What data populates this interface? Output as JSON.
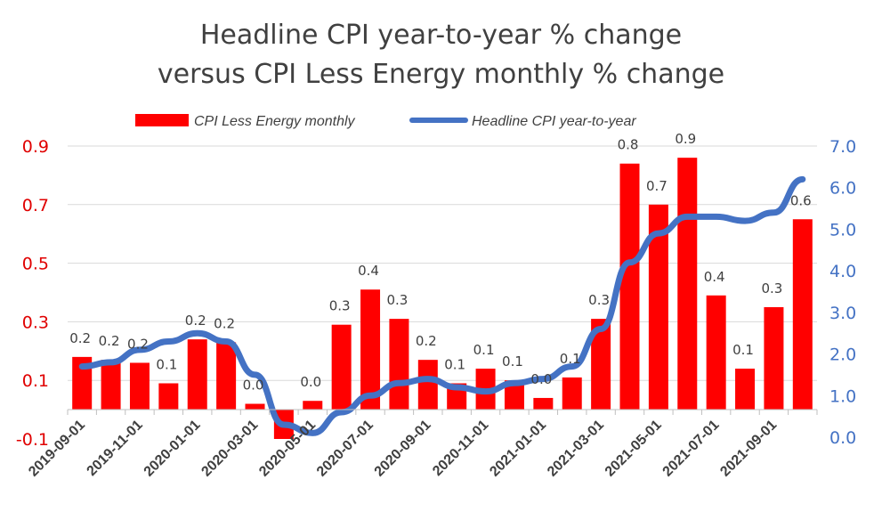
{
  "title": {
    "line1": "Headline CPI year-to-year % change",
    "line2": "versus CPI Less Energy monthly % change"
  },
  "legend": {
    "bar_label": "CPI Less Energy monthly",
    "line_label": "Headline CPI year-to-year"
  },
  "colors": {
    "bar": "#ff0000",
    "line": "#4472c4",
    "left_axis": "#e00000",
    "right_axis": "#4472c4",
    "text": "#404040"
  },
  "chart_data": {
    "type": "bar",
    "categories": [
      "2019-09-01",
      "2019-10-01",
      "2019-11-01",
      "2019-12-01",
      "2020-01-01",
      "2020-02-01",
      "2020-03-01",
      "2020-04-01",
      "2020-05-01",
      "2020-06-01",
      "2020-07-01",
      "2020-08-01",
      "2020-09-01",
      "2020-10-01",
      "2020-11-01",
      "2020-12-01",
      "2021-01-01",
      "2021-02-01",
      "2021-03-01",
      "2021-04-01",
      "2021-05-01",
      "2021-06-01",
      "2021-07-01",
      "2021-08-01",
      "2021-09-01",
      "2021-10-01"
    ],
    "x_tick_labels": [
      "2019-09-01",
      "2019-11-01",
      "2020-01-01",
      "2020-03-01",
      "2020-05-01",
      "2020-07-01",
      "2020-09-01",
      "2020-11-01",
      "2021-01-01",
      "2021-03-01",
      "2021-05-01",
      "2021-07-01",
      "2021-09-01"
    ],
    "series": [
      {
        "name": "CPI Less Energy monthly",
        "type": "bar",
        "axis": "left",
        "values": [
          0.18,
          0.17,
          0.16,
          0.09,
          0.24,
          0.23,
          0.02,
          -0.1,
          0.03,
          0.29,
          0.41,
          0.31,
          0.17,
          0.09,
          0.14,
          0.1,
          0.04,
          0.11,
          0.31,
          0.84,
          0.7,
          0.86,
          0.39,
          0.14,
          0.35,
          0.65
        ],
        "labels": [
          "0.2",
          "0.2",
          "0.2",
          "0.1",
          "0.2",
          "0.2",
          "0.0",
          "",
          "0.0",
          "0.3",
          "0.4",
          "0.3",
          "0.2",
          "0.1",
          "0.1",
          "0.1",
          "0.0",
          "0.1",
          "0.3",
          "0.8",
          "0.7",
          "0.9",
          "0.4",
          "0.1",
          "0.3",
          "0.6"
        ]
      },
      {
        "name": "Headline CPI year-to-year",
        "type": "line",
        "axis": "right",
        "values": [
          1.7,
          1.8,
          2.1,
          2.3,
          2.5,
          2.3,
          1.5,
          0.3,
          0.1,
          0.6,
          1.0,
          1.3,
          1.4,
          1.2,
          1.1,
          1.3,
          1.4,
          1.7,
          2.6,
          4.2,
          4.9,
          5.3,
          5.3,
          5.2,
          5.4,
          6.2
        ]
      }
    ],
    "left_axis": {
      "min": -0.1,
      "max": 0.9,
      "ticks": [
        "0.9",
        "0.7",
        "0.5",
        "0.3",
        "0.1",
        "-0.1"
      ]
    },
    "right_axis": {
      "min": 0.0,
      "max": 7.0,
      "ticks": [
        "7.0",
        "6.0",
        "5.0",
        "4.0",
        "3.0",
        "2.0",
        "1.0",
        "0.0"
      ]
    },
    "grid": "horizontal",
    "legend_position": "top"
  }
}
